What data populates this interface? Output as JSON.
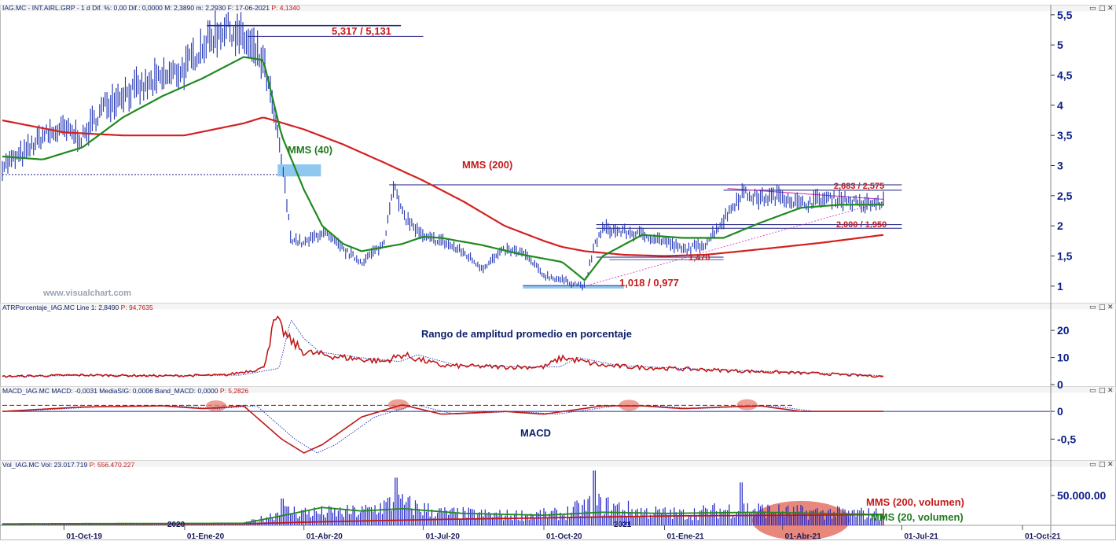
{
  "colors": {
    "price": "#1a2fb0",
    "mms40": "#1f8a1f",
    "mms200": "#d42020",
    "atr": "#c01818",
    "atr_signal": "#1a2fb0",
    "macd": "#c01818",
    "macd_signal": "#1a2fb0",
    "volume": "#1e22c8",
    "vol_mms20": "#1f8a1f",
    "vol_mms200": "#c01818",
    "axis_text": "#0b1f8a",
    "annotation_red": "#c41a1a",
    "annotation_green": "#1f7a1f",
    "annotation_navy": "#0b1f6a",
    "highlight_blue": "#8ec8f0"
  },
  "panels": {
    "price": {
      "header_parts": [
        {
          "text": "IAG.MC - INT.AIRL.GRP - 1 d  Dif. %: 0,00  Dif.: 0,0000  M: 2,3890  m: 2,2930  F: 17-06-2021",
          "color": "#0b1f6a"
        },
        {
          "text": "  P: 4,1340",
          "color": "#c01818"
        }
      ],
      "yticks": [
        "5,5",
        "5",
        "4,5",
        "4",
        "3,5",
        "3",
        "2,5",
        "2",
        "1,5",
        "1"
      ]
    },
    "atr": {
      "header_parts": [
        {
          "text": "ATRPorcentaje_IAG.MC  Line 1: 2,8490",
          "color": "#0b1f6a"
        },
        {
          "text": "  P: 94,7635",
          "color": "#c01818"
        }
      ],
      "yticks": [
        "20",
        "10",
        "0"
      ]
    },
    "macd": {
      "header_parts": [
        {
          "text": "MACD_IAG.MC  MACD: -0,0031  MediaSIG: 0,0006  Band_MACD: 0,0000",
          "color": "#0b1f6a"
        },
        {
          "text": "  P: 5,2826",
          "color": "#c01818"
        }
      ],
      "yticks": [
        "0",
        "-0,5"
      ]
    },
    "volume": {
      "header_parts": [
        {
          "text": "Vol_IAG.MC  Vol: 23.017.719",
          "color": "#0b1f6a"
        },
        {
          "text": "  P: 556.470.227",
          "color": "#c01818"
        }
      ],
      "yticks": [
        "50.000.00"
      ]
    }
  },
  "xticks": [
    "01-Oct-19",
    "01-Ene-20",
    "01-Abr-20",
    "01-Jul-20",
    "01-Oct-20",
    "01-Ene-21",
    "01-Abr-21",
    "01-Jul-21",
    "01-Oct-21"
  ],
  "year_markers": [
    "2020",
    "2021"
  ],
  "watermark": "www.visualchart.com",
  "annotations": {
    "resistance_top": "5,317 / 5,131",
    "mms40": "MMS (40)",
    "mms200": "MMS (200)",
    "triangle_top": "2,683 / 2,575",
    "triangle_support": "2,000 / 1,950",
    "low_mid": "1,470",
    "bottom": "1,018 / 0,977",
    "atr_title": "Rango de amplitud promedio en porcentaje",
    "macd_title": "MACD",
    "vol_mms200": "MMS (200, volumen)",
    "vol_mms20": "MMS (20, volumen)"
  },
  "chart_data": [
    {
      "type": "line",
      "name": "price",
      "x": [
        "2019-08-15",
        "2019-09-01",
        "2019-09-15",
        "2019-10-01",
        "2019-10-15",
        "2019-11-01",
        "2019-11-15",
        "2019-12-01",
        "2019-12-15",
        "2020-01-01",
        "2020-01-15",
        "2020-02-01",
        "2020-02-15",
        "2020-03-01",
        "2020-03-08",
        "2020-03-15",
        "2020-03-22",
        "2020-04-01",
        "2020-04-15",
        "2020-05-01",
        "2020-05-15",
        "2020-06-01",
        "2020-06-08",
        "2020-06-15",
        "2020-07-01",
        "2020-07-15",
        "2020-08-01",
        "2020-08-15",
        "2020-09-01",
        "2020-09-15",
        "2020-10-01",
        "2020-10-15",
        "2020-11-01",
        "2020-11-09",
        "2020-11-15",
        "2020-12-01",
        "2020-12-15",
        "2021-01-01",
        "2021-01-15",
        "2021-02-01",
        "2021-02-15",
        "2021-03-01",
        "2021-03-15",
        "2021-04-01",
        "2021-04-15",
        "2021-05-01",
        "2021-05-15",
        "2021-06-01",
        "2021-06-17"
      ],
      "y": [
        3.0,
        3.2,
        3.5,
        3.6,
        3.45,
        4.0,
        4.2,
        4.3,
        4.45,
        4.6,
        5.0,
        5.3,
        5.1,
        4.7,
        4.0,
        3.1,
        1.8,
        1.7,
        1.9,
        1.6,
        1.4,
        1.7,
        2.7,
        2.2,
        1.8,
        1.75,
        1.55,
        1.3,
        1.6,
        1.55,
        1.18,
        1.1,
        1.0,
        1.7,
        1.95,
        1.9,
        1.85,
        1.75,
        1.6,
        1.7,
        2.1,
        2.55,
        2.45,
        2.5,
        2.35,
        2.45,
        2.45,
        2.35,
        2.39
      ]
    },
    {
      "type": "line",
      "name": "MMS (40)",
      "x": [
        "2019-08-15",
        "2019-09-15",
        "2019-10-15",
        "2019-11-15",
        "2019-12-15",
        "2020-01-15",
        "2020-02-15",
        "2020-03-01",
        "2020-03-15",
        "2020-04-01",
        "2020-04-15",
        "2020-05-01",
        "2020-05-15",
        "2020-06-15",
        "2020-07-01",
        "2020-07-15",
        "2020-08-15",
        "2020-09-15",
        "2020-10-15",
        "2020-11-01",
        "2020-11-15",
        "2020-12-15",
        "2021-01-15",
        "2021-02-15",
        "2021-03-15",
        "2021-04-15",
        "2021-05-15",
        "2021-06-17"
      ],
      "y": [
        3.15,
        3.1,
        3.3,
        3.8,
        4.15,
        4.45,
        4.8,
        4.75,
        3.5,
        2.6,
        2.0,
        1.7,
        1.58,
        1.7,
        1.82,
        1.8,
        1.68,
        1.52,
        1.4,
        1.1,
        1.5,
        1.85,
        1.8,
        1.8,
        2.05,
        2.3,
        2.35,
        2.35
      ]
    },
    {
      "type": "line",
      "name": "MMS (200)",
      "x": [
        "2019-08-15",
        "2019-10-01",
        "2019-11-15",
        "2020-01-01",
        "2020-02-15",
        "2020-03-01",
        "2020-04-01",
        "2020-05-01",
        "2020-06-01",
        "2020-07-01",
        "2020-08-01",
        "2020-09-01",
        "2020-10-01",
        "2020-10-15",
        "2020-11-01",
        "2020-12-01",
        "2021-01-01",
        "2021-02-01",
        "2021-03-01",
        "2021-04-01",
        "2021-05-01",
        "2021-06-17"
      ],
      "y": [
        3.75,
        3.55,
        3.5,
        3.5,
        3.7,
        3.8,
        3.6,
        3.35,
        3.05,
        2.75,
        2.4,
        2.0,
        1.75,
        1.65,
        1.58,
        1.52,
        1.5,
        1.52,
        1.58,
        1.65,
        1.72,
        1.85
      ]
    },
    {
      "type": "line",
      "name": "ATR %",
      "x": [
        "2019-08-15",
        "2019-10-15",
        "2019-12-15",
        "2020-02-01",
        "2020-03-01",
        "2020-03-10",
        "2020-03-20",
        "2020-04-01",
        "2020-05-01",
        "2020-06-01",
        "2020-06-15",
        "2020-07-15",
        "2020-09-01",
        "2020-10-01",
        "2020-10-15",
        "2020-11-15",
        "2021-01-01",
        "2021-03-01",
        "2021-05-01",
        "2021-06-17"
      ],
      "y": [
        3,
        3.5,
        3.2,
        3.5,
        6,
        24,
        17,
        12,
        10,
        8.5,
        11,
        7,
        6.5,
        6.5,
        10,
        7,
        6,
        5,
        4,
        3
      ]
    },
    {
      "type": "line",
      "name": "MACD",
      "x": [
        "2019-08-15",
        "2019-10-15",
        "2019-12-15",
        "2020-01-15",
        "2020-02-15",
        "2020-03-15",
        "2020-04-01",
        "2020-04-15",
        "2020-05-15",
        "2020-06-15",
        "2020-07-15",
        "2020-09-01",
        "2020-10-01",
        "2020-11-15",
        "2020-12-15",
        "2021-01-15",
        "2021-02-15",
        "2021-03-15",
        "2021-04-15",
        "2021-06-17"
      ],
      "y": [
        0.0,
        0.08,
        0.1,
        0.05,
        0.1,
        -0.5,
        -0.75,
        -0.6,
        -0.1,
        0.12,
        -0.05,
        0.0,
        -0.05,
        0.1,
        0.1,
        0.05,
        0.08,
        0.1,
        0.0,
        0.0
      ]
    },
    {
      "type": "bar",
      "name": "Volume",
      "ylim": [
        0,
        95000000
      ],
      "peaks": [
        {
          "x": "2020-03-15",
          "y": 45000000
        },
        {
          "x": "2020-06-10",
          "y": 80000000
        },
        {
          "x": "2020-11-09",
          "y": 92000000
        },
        {
          "x": "2021-03-01",
          "y": 72000000
        }
      ]
    }
  ]
}
